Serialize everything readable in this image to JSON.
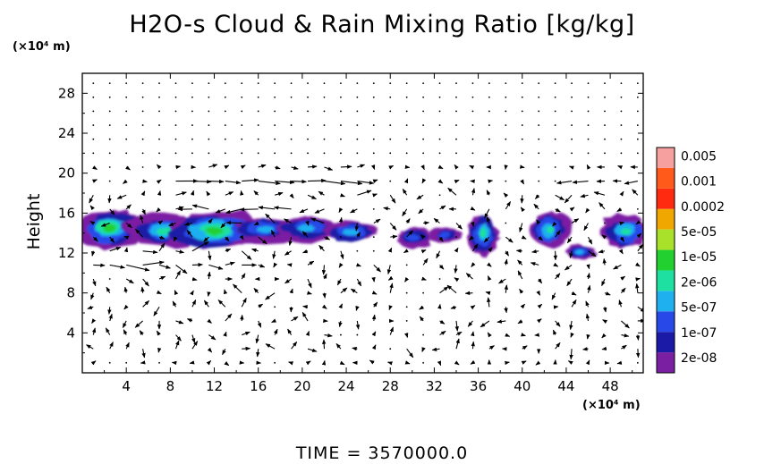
{
  "chart_data": {
    "type": "heatmap",
    "title": "H2O-s Cloud & Rain Mixing Ratio [kg/kg]",
    "ylabel": "Height",
    "y_unit": "(×10⁴ m)",
    "x_unit": "(×10⁴ m)",
    "footer": "TIME = 3570000.0",
    "xlim": [
      0,
      51
    ],
    "ylim": [
      0,
      30
    ],
    "x_ticks": [
      "4",
      "8",
      "12",
      "16",
      "20",
      "24",
      "28",
      "32",
      "36",
      "40",
      "44",
      "48"
    ],
    "y_ticks": [
      "4",
      "8",
      "12",
      "16",
      "20",
      "24",
      "28"
    ],
    "colorbar": [
      {
        "label": "2e-08",
        "color": "#7b1fa2"
      },
      {
        "label": "1e-07",
        "color": "#1a1aa6"
      },
      {
        "label": "5e-07",
        "color": "#2848e8"
      },
      {
        "label": "2e-06",
        "color": "#1fb0f0"
      },
      {
        "label": "1e-05",
        "color": "#1ee0a0"
      },
      {
        "label": "5e-05",
        "color": "#22d030"
      },
      {
        "label": "0.0002",
        "color": "#a8e02a"
      },
      {
        "label": "0.001",
        "color": "#f0a800"
      },
      {
        "label": "0.005",
        "color": "#ff2a10"
      }
    ],
    "colorbar_extra": [
      "#ff5a1a",
      "#f7a0a0"
    ],
    "cloud_regions": [
      {
        "x": 2.5,
        "y": 14.5,
        "rx": 2.8,
        "ry": 1.8,
        "peak": 5
      },
      {
        "x": 7.5,
        "y": 14.2,
        "rx": 3.0,
        "ry": 1.6,
        "peak": 4
      },
      {
        "x": 12.0,
        "y": 14.2,
        "rx": 4.0,
        "ry": 1.9,
        "peak": 5
      },
      {
        "x": 16.5,
        "y": 14.3,
        "rx": 2.5,
        "ry": 1.2,
        "peak": 3
      },
      {
        "x": 20.5,
        "y": 14.5,
        "rx": 2.6,
        "ry": 1.2,
        "peak": 3
      },
      {
        "x": 24.5,
        "y": 14.1,
        "rx": 2.2,
        "ry": 1.0,
        "peak": 3
      },
      {
        "x": 30.0,
        "y": 13.6,
        "rx": 1.6,
        "ry": 0.9,
        "peak": 2
      },
      {
        "x": 33.0,
        "y": 13.8,
        "rx": 1.4,
        "ry": 0.7,
        "peak": 2
      },
      {
        "x": 36.5,
        "y": 14.0,
        "rx": 1.3,
        "ry": 2.0,
        "peak": 4
      },
      {
        "x": 42.5,
        "y": 14.3,
        "rx": 1.6,
        "ry": 1.7,
        "peak": 4
      },
      {
        "x": 45.2,
        "y": 12.1,
        "rx": 1.3,
        "ry": 0.7,
        "peak": 3
      },
      {
        "x": 49.5,
        "y": 14.2,
        "rx": 2.0,
        "ry": 1.6,
        "peak": 4
      }
    ],
    "wind_jets": [
      {
        "y": 19.0,
        "x0": 8,
        "x1": 25,
        "u": 2.0
      },
      {
        "y": 16.5,
        "x0": 10,
        "x1": 22,
        "u": -1.6
      },
      {
        "y": 11.0,
        "x0": 0,
        "x1": 15,
        "u": 1.4
      },
      {
        "y": 19.0,
        "x0": 44,
        "x1": 51,
        "u": -1.2
      }
    ],
    "grid": false
  }
}
